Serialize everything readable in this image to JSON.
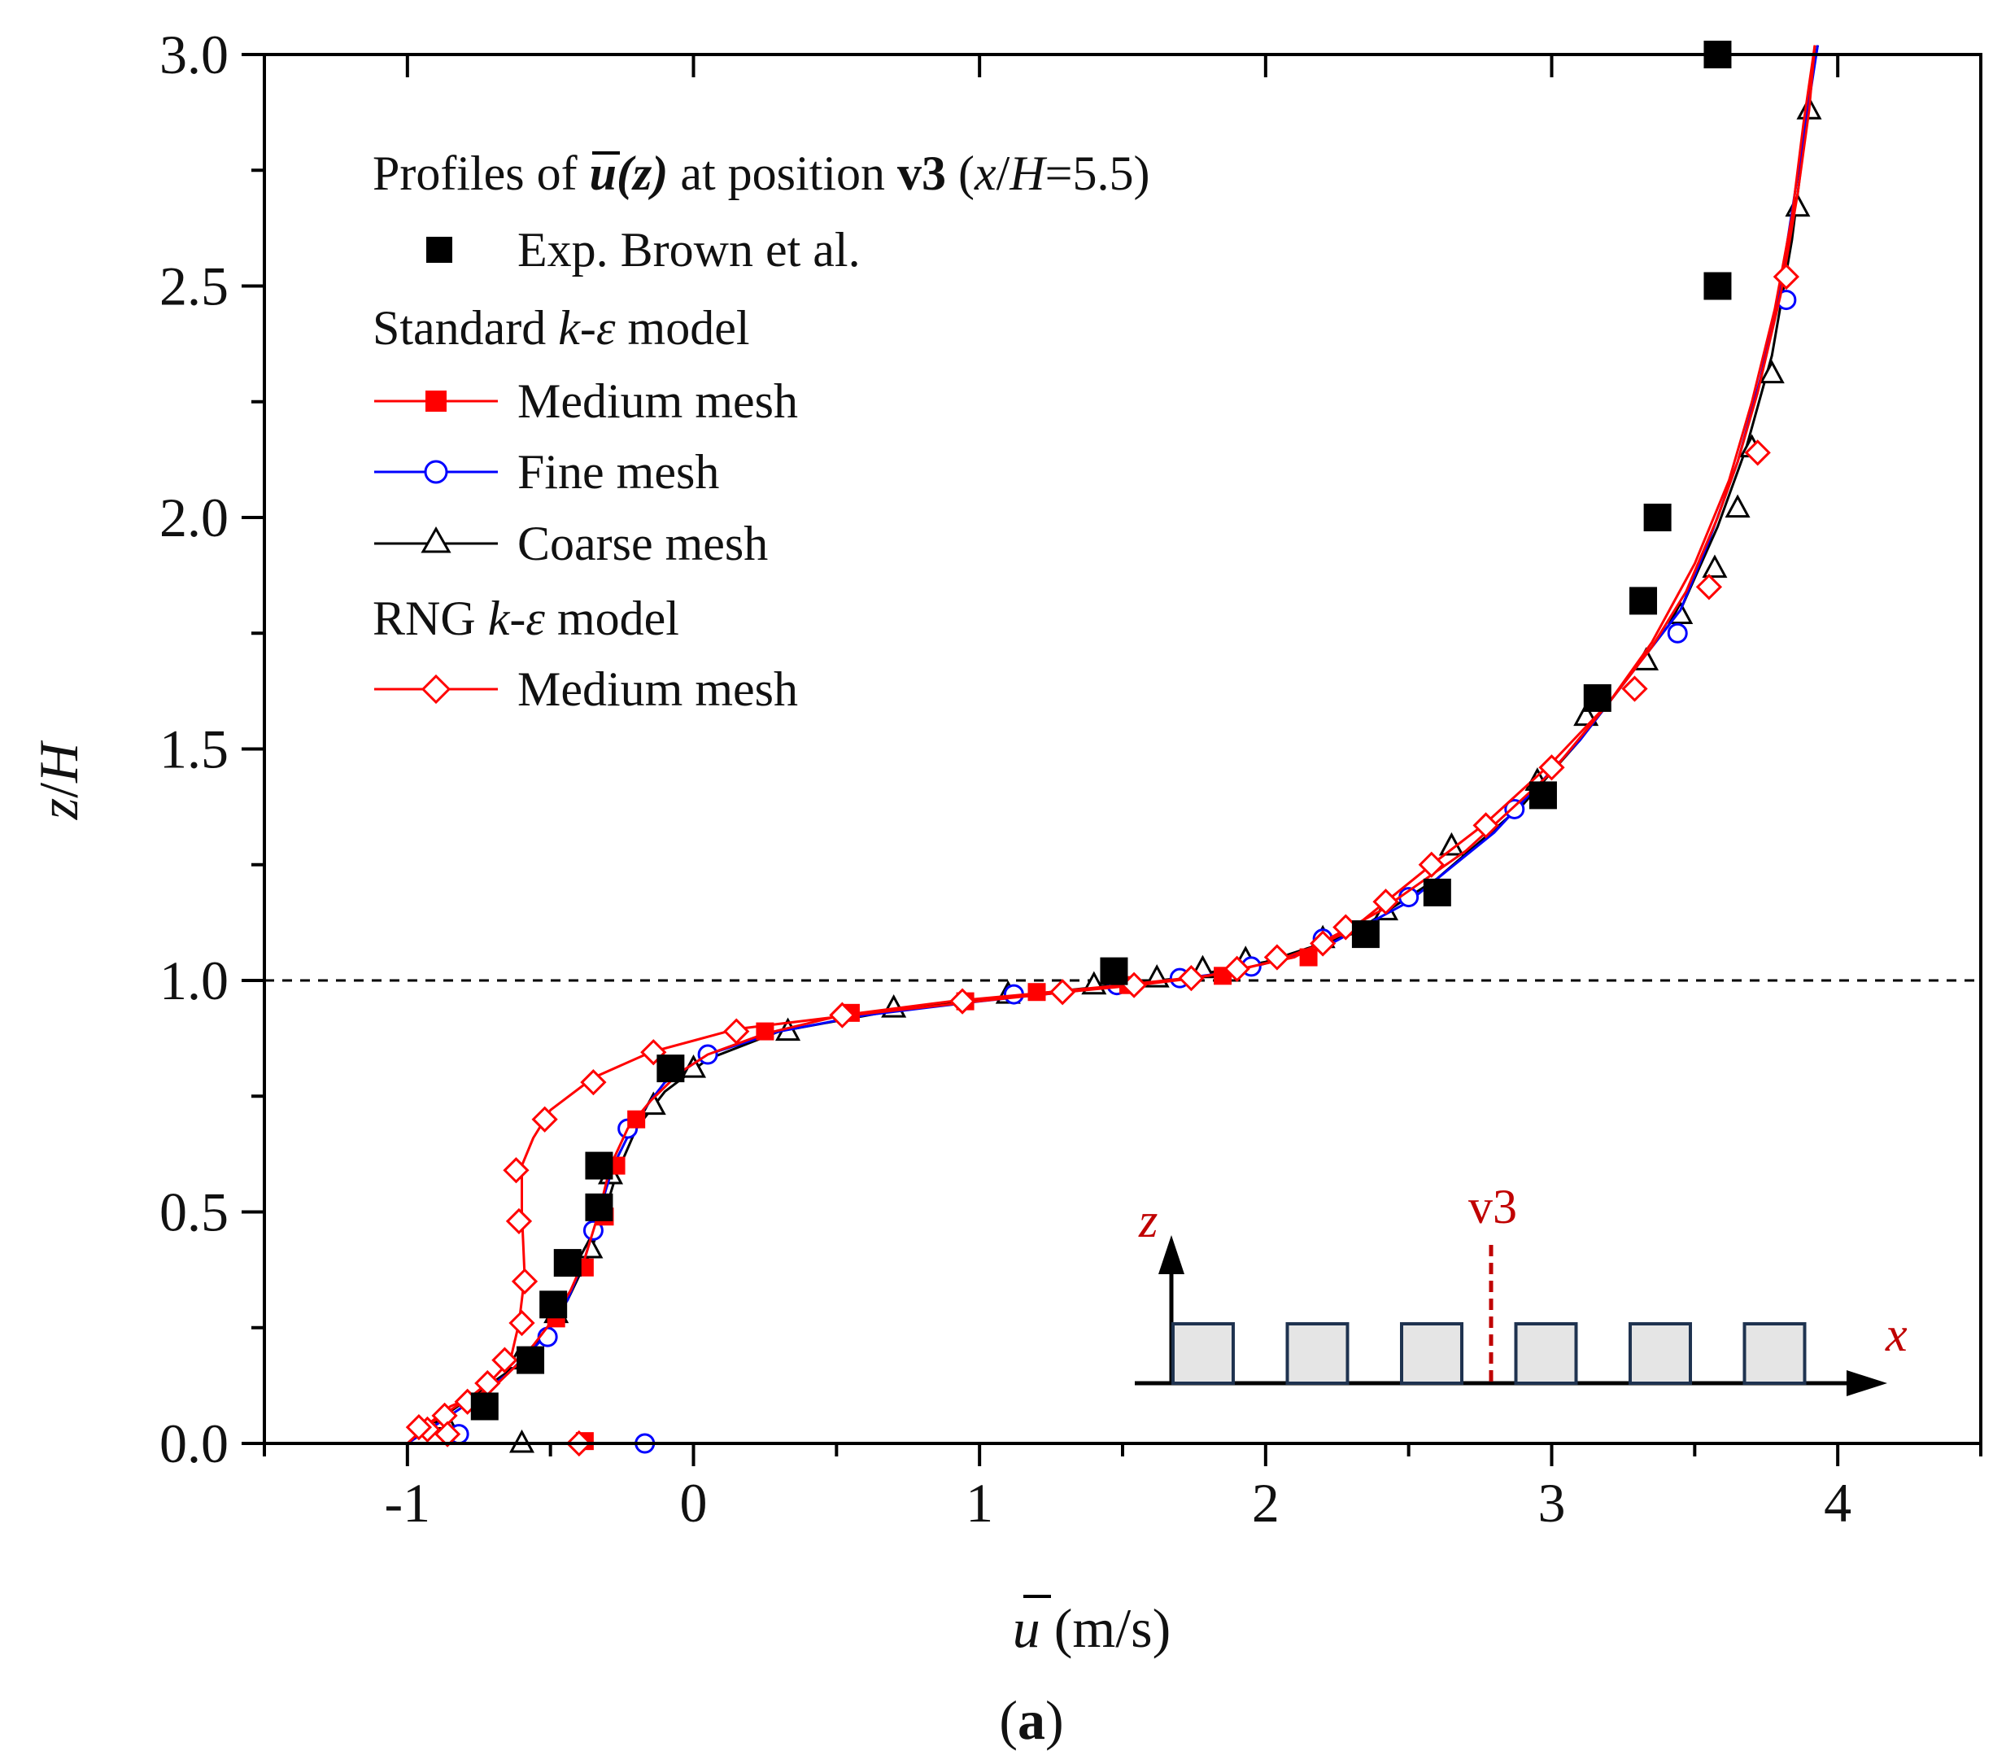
{
  "chart_data": {
    "type": "line",
    "title": "Profiles of ū(z) at position v3 (x/H=5.5)",
    "title_parts": {
      "prefix": "Profiles of ",
      "var": "u",
      "var_arg": "(z)",
      "middle": " at position ",
      "position": "v3",
      "loc_open": " (",
      "loc_var1": "x",
      "loc_sep": "/",
      "loc_var2": "H",
      "loc_rest": "=5.5)"
    },
    "xlabel": "ū (m/s)",
    "xlabel_parts": {
      "var": "u",
      "unit": " (m/s)"
    },
    "ylabel": "z/H",
    "ylabel_parts": {
      "var1": "z",
      "sep": "/",
      "var2": "H"
    },
    "xlim": [
      -1.5,
      4.5
    ],
    "ylim": [
      0,
      3
    ],
    "xticks": [
      -1,
      0,
      1,
      2,
      3,
      4
    ],
    "xtick_labels": [
      "-1",
      "0",
      "1",
      "2",
      "3",
      "4"
    ],
    "yticks": [
      0,
      0.5,
      1.0,
      1.5,
      2.0,
      2.5,
      3.0
    ],
    "ytick_labels": [
      "0.0",
      "0.5",
      "1.0",
      "1.5",
      "2.0",
      "2.5",
      "3.0"
    ],
    "reference_line": {
      "y": 1.0,
      "style": "dashed"
    },
    "caption_parts": {
      "open": "(",
      "letter": "a",
      "close": ")"
    },
    "legend": {
      "placement": "top-left",
      "groups": [
        {
          "heading_text": "Standard ",
          "heading_var": "k-ε",
          "heading_suffix": " model"
        },
        {
          "heading_text": "RNG ",
          "heading_var": "k-ε",
          "heading_suffix": " model"
        }
      ]
    },
    "series": [
      {
        "name": "Exp. Brown et al.",
        "type": "scatter",
        "marker": "filled-square",
        "color": "#000000",
        "points": [
          [
            3.58,
            3.0
          ],
          [
            3.58,
            2.5
          ],
          [
            3.37,
            2.0
          ],
          [
            3.32,
            1.82
          ],
          [
            3.16,
            1.61
          ],
          [
            2.97,
            1.4
          ],
          [
            2.6,
            1.19
          ],
          [
            2.35,
            1.1
          ],
          [
            1.47,
            1.02
          ],
          [
            -0.08,
            0.81
          ],
          [
            -0.33,
            0.6
          ],
          [
            -0.33,
            0.51
          ],
          [
            -0.44,
            0.39
          ],
          [
            -0.49,
            0.3
          ],
          [
            -0.57,
            0.18
          ],
          [
            -0.73,
            0.08
          ]
        ]
      },
      {
        "name": "Medium mesh",
        "group": 0,
        "type": "line",
        "marker": "filled-square-small",
        "color": "#ff0000",
        "points": [
          [
            -1.0,
            0.0
          ],
          [
            -0.93,
            0.04
          ],
          [
            -0.85,
            0.08
          ],
          [
            -0.7,
            0.12
          ],
          [
            -0.6,
            0.18
          ],
          [
            -0.5,
            0.26
          ],
          [
            -0.43,
            0.33
          ],
          [
            -0.38,
            0.4
          ],
          [
            -0.33,
            0.5
          ],
          [
            -0.29,
            0.6
          ],
          [
            -0.23,
            0.68
          ],
          [
            -0.15,
            0.74
          ],
          [
            -0.05,
            0.8
          ],
          [
            0.05,
            0.84
          ],
          [
            0.25,
            0.885
          ],
          [
            0.52,
            0.925
          ],
          [
            0.9,
            0.955
          ],
          [
            1.2,
            0.972
          ],
          [
            1.5,
            0.99
          ],
          [
            1.8,
            1.01
          ],
          [
            2.1,
            1.05
          ],
          [
            2.4,
            1.15
          ],
          [
            2.7,
            1.28
          ],
          [
            3.0,
            1.45
          ],
          [
            3.2,
            1.6
          ],
          [
            3.35,
            1.73
          ],
          [
            3.5,
            1.9
          ],
          [
            3.62,
            2.08
          ],
          [
            3.7,
            2.25
          ],
          [
            3.78,
            2.45
          ],
          [
            3.84,
            2.65
          ],
          [
            3.88,
            2.85
          ],
          [
            3.92,
            3.02
          ]
        ],
        "marker_points": [
          [
            -0.57,
            0.19
          ],
          [
            -0.48,
            0.27
          ],
          [
            -0.38,
            0.38
          ],
          [
            -0.31,
            0.49
          ],
          [
            -0.27,
            0.6
          ],
          [
            -0.2,
            0.7
          ],
          [
            -0.08,
            0.8
          ],
          [
            0.25,
            0.89
          ],
          [
            0.55,
            0.93
          ],
          [
            0.95,
            0.955
          ],
          [
            1.2,
            0.975
          ],
          [
            1.52,
            0.99
          ],
          [
            1.85,
            1.01
          ],
          [
            2.15,
            1.05
          ],
          [
            -0.38,
            0.005
          ]
        ]
      },
      {
        "name": "Fine mesh",
        "group": 0,
        "type": "line",
        "marker": "open-circle",
        "color": "#0000ff",
        "points": [
          [
            -1.0,
            0.0
          ],
          [
            -0.9,
            0.04
          ],
          [
            -0.78,
            0.09
          ],
          [
            -0.65,
            0.15
          ],
          [
            -0.52,
            0.23
          ],
          [
            -0.44,
            0.31
          ],
          [
            -0.38,
            0.4
          ],
          [
            -0.34,
            0.48
          ],
          [
            -0.28,
            0.6
          ],
          [
            -0.2,
            0.7
          ],
          [
            -0.1,
            0.78
          ],
          [
            0.05,
            0.84
          ],
          [
            0.3,
            0.89
          ],
          [
            0.6,
            0.925
          ],
          [
            1.0,
            0.955
          ],
          [
            1.3,
            0.975
          ],
          [
            1.6,
            0.995
          ],
          [
            1.9,
            1.02
          ],
          [
            2.2,
            1.07
          ],
          [
            2.5,
            1.17
          ],
          [
            2.8,
            1.32
          ],
          [
            3.1,
            1.52
          ],
          [
            3.3,
            1.68
          ],
          [
            3.45,
            1.8
          ],
          [
            3.55,
            1.95
          ],
          [
            3.65,
            2.12
          ],
          [
            3.73,
            2.3
          ],
          [
            3.8,
            2.5
          ],
          [
            3.85,
            2.7
          ],
          [
            3.9,
            2.9
          ],
          [
            3.93,
            3.02
          ]
        ],
        "marker_points": [
          [
            -0.82,
            0.02
          ],
          [
            -0.51,
            0.23
          ],
          [
            -0.35,
            0.46
          ],
          [
            -0.23,
            0.68
          ],
          [
            0.05,
            0.84
          ],
          [
            1.12,
            0.97
          ],
          [
            1.48,
            0.99
          ],
          [
            1.7,
            1.005
          ],
          [
            1.95,
            1.03
          ],
          [
            2.2,
            1.09
          ],
          [
            2.5,
            1.18
          ],
          [
            2.87,
            1.37
          ],
          [
            3.44,
            1.75
          ],
          [
            3.82,
            2.47
          ],
          [
            -0.17,
            0.0
          ]
        ]
      },
      {
        "name": "Coarse mesh",
        "group": 0,
        "type": "line",
        "marker": "open-triangle",
        "color": "#000000",
        "points": [
          [
            -1.0,
            0.0
          ],
          [
            -0.92,
            0.04
          ],
          [
            -0.8,
            0.09
          ],
          [
            -0.66,
            0.15
          ],
          [
            -0.53,
            0.23
          ],
          [
            -0.44,
            0.31
          ],
          [
            -0.37,
            0.4
          ],
          [
            -0.32,
            0.48
          ],
          [
            -0.27,
            0.58
          ],
          [
            -0.2,
            0.68
          ],
          [
            -0.1,
            0.76
          ],
          [
            0.05,
            0.83
          ],
          [
            0.3,
            0.89
          ],
          [
            0.7,
            0.935
          ],
          [
            1.1,
            0.965
          ],
          [
            1.4,
            0.985
          ],
          [
            1.7,
            1.005
          ],
          [
            2.0,
            1.04
          ],
          [
            2.3,
            1.1
          ],
          [
            2.6,
            1.22
          ],
          [
            2.9,
            1.38
          ],
          [
            3.1,
            1.52
          ],
          [
            3.3,
            1.68
          ],
          [
            3.45,
            1.8
          ],
          [
            3.58,
            1.98
          ],
          [
            3.68,
            2.15
          ],
          [
            3.77,
            2.35
          ],
          [
            3.84,
            2.6
          ],
          [
            3.88,
            2.8
          ],
          [
            3.91,
            2.95
          ],
          [
            3.93,
            3.02
          ]
        ],
        "marker_points": [
          [
            -0.87,
            0.05
          ],
          [
            -0.61,
            0.18
          ],
          [
            -0.48,
            0.28
          ],
          [
            -0.36,
            0.42
          ],
          [
            -0.29,
            0.58
          ],
          [
            -0.14,
            0.73
          ],
          [
            0.0,
            0.81
          ],
          [
            0.33,
            0.89
          ],
          [
            0.7,
            0.94
          ],
          [
            1.1,
            0.97
          ],
          [
            1.4,
            0.99
          ],
          [
            1.62,
            1.005
          ],
          [
            1.78,
            1.025
          ],
          [
            1.93,
            1.045
          ],
          [
            2.2,
            1.09
          ],
          [
            2.42,
            1.15
          ],
          [
            2.65,
            1.29
          ],
          [
            2.95,
            1.43
          ],
          [
            3.12,
            1.57
          ],
          [
            3.33,
            1.69
          ],
          [
            3.45,
            1.79
          ],
          [
            3.57,
            1.89
          ],
          [
            3.65,
            2.02
          ],
          [
            3.7,
            2.15
          ],
          [
            3.77,
            2.31
          ],
          [
            3.86,
            2.67
          ],
          [
            3.9,
            2.88
          ],
          [
            -0.6,
            0.0
          ]
        ]
      },
      {
        "name": "Medium mesh",
        "group": 1,
        "type": "line",
        "marker": "open-diamond",
        "color": "#ff0000",
        "points": [
          [
            -0.95,
            0.03
          ],
          [
            -0.88,
            0.06
          ],
          [
            -0.78,
            0.1
          ],
          [
            -0.7,
            0.14
          ],
          [
            -0.64,
            0.18
          ],
          [
            -0.61,
            0.26
          ],
          [
            -0.59,
            0.36
          ],
          [
            -0.6,
            0.5
          ],
          [
            -0.6,
            0.6
          ],
          [
            -0.56,
            0.66
          ],
          [
            -0.5,
            0.72
          ],
          [
            -0.35,
            0.79
          ],
          [
            -0.15,
            0.845
          ],
          [
            0.0,
            0.87
          ],
          [
            0.15,
            0.895
          ],
          [
            0.55,
            0.925
          ],
          [
            0.95,
            0.952
          ],
          [
            1.3,
            0.975
          ],
          [
            1.55,
            0.99
          ],
          [
            1.75,
            1.005
          ],
          [
            1.92,
            1.025
          ],
          [
            2.05,
            1.045
          ],
          [
            2.2,
            1.08
          ],
          [
            2.3,
            1.11
          ],
          [
            2.42,
            1.17
          ],
          [
            2.58,
            1.25
          ],
          [
            2.77,
            1.34
          ],
          [
            3.0,
            1.47
          ],
          [
            3.2,
            1.6
          ],
          [
            3.35,
            1.72
          ],
          [
            3.47,
            1.84
          ],
          [
            3.58,
            2.0
          ],
          [
            3.65,
            2.12
          ],
          [
            3.72,
            2.27
          ],
          [
            3.8,
            2.48
          ],
          [
            3.86,
            2.7
          ],
          [
            3.9,
            2.88
          ],
          [
            3.92,
            3.02
          ]
        ],
        "marker_points": [
          [
            -0.93,
            0.03
          ],
          [
            -0.87,
            0.06
          ],
          [
            -0.79,
            0.09
          ],
          [
            -0.72,
            0.13
          ],
          [
            -0.66,
            0.18
          ],
          [
            -0.6,
            0.26
          ],
          [
            -0.59,
            0.35
          ],
          [
            -0.61,
            0.48
          ],
          [
            -0.62,
            0.59
          ],
          [
            -0.52,
            0.7
          ],
          [
            -0.35,
            0.78
          ],
          [
            -0.14,
            0.845
          ],
          [
            0.15,
            0.89
          ],
          [
            0.52,
            0.925
          ],
          [
            0.94,
            0.955
          ],
          [
            1.29,
            0.975
          ],
          [
            1.54,
            0.99
          ],
          [
            1.74,
            1.005
          ],
          [
            1.9,
            1.025
          ],
          [
            2.04,
            1.05
          ],
          [
            2.2,
            1.08
          ],
          [
            2.28,
            1.115
          ],
          [
            2.42,
            1.17
          ],
          [
            2.58,
            1.25
          ],
          [
            2.77,
            1.335
          ],
          [
            3.0,
            1.46
          ],
          [
            3.29,
            1.63
          ],
          [
            3.55,
            1.85
          ],
          [
            3.72,
            2.14
          ],
          [
            3.82,
            2.52
          ],
          [
            -0.96,
            0.035
          ],
          [
            -0.86,
            0.02
          ],
          [
            -0.4,
            0.0
          ]
        ]
      }
    ],
    "inset": {
      "x_axis_label": "x",
      "z_axis_label": "z",
      "position_label": "v3",
      "building_count": 6,
      "colors": {
        "building_fill": "#e5e5e5",
        "building_stroke": "#1f3350",
        "marker": "#c00000"
      }
    }
  }
}
